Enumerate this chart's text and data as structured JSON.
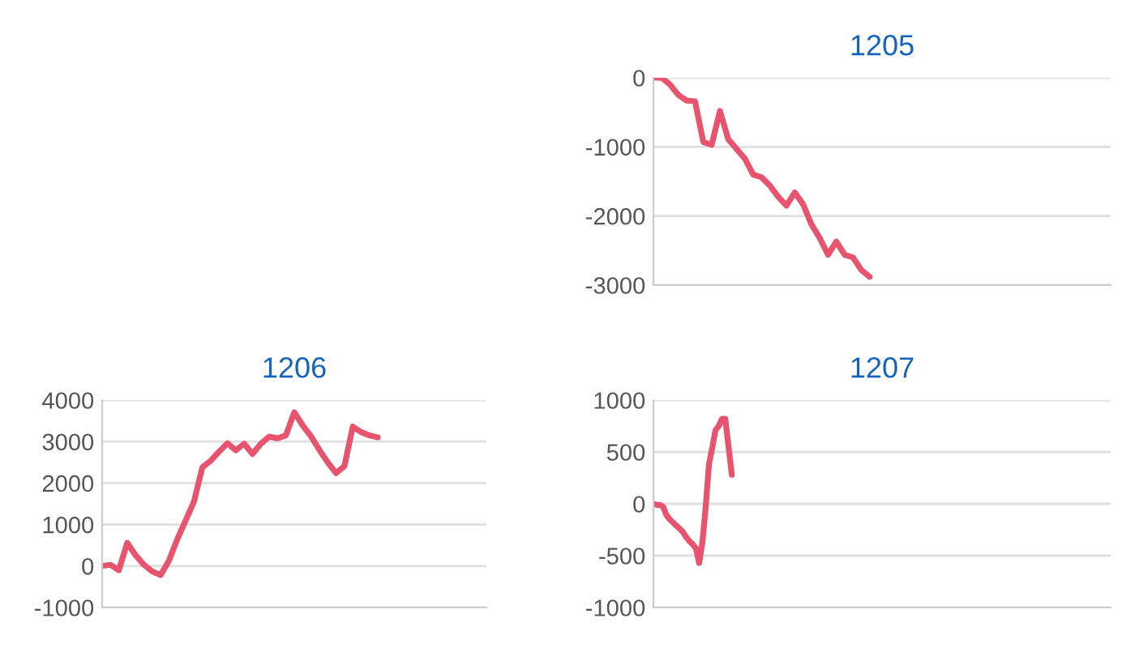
{
  "chart_data": [
    {
      "type": "line",
      "title": "1205",
      "categories": [
        null,
        null,
        null,
        null,
        null,
        null,
        null,
        null,
        null,
        null,
        null,
        null,
        null,
        null,
        null,
        null,
        null,
        null,
        null,
        null,
        null,
        null,
        null,
        null,
        null,
        null,
        null,
        null,
        null,
        null,
        null,
        null,
        null,
        null,
        null,
        null,
        null,
        null,
        null,
        null,
        null,
        null,
        null,
        null,
        null,
        null,
        null,
        null,
        null,
        null,
        null,
        null,
        null,
        null,
        null,
        null
      ],
      "series": [
        {
          "color": "#e8546e",
          "values": [
            0,
            0,
            -100,
            -250,
            -330,
            -340,
            -930,
            -970,
            -480,
            -890,
            -1030,
            -1170,
            -1400,
            -1440,
            -1560,
            -1720,
            -1850,
            -1660,
            -1830,
            -2120,
            -2320,
            -2560,
            -2370,
            -2560,
            -2600,
            -2780,
            -2880,
            null,
            null,
            null,
            null,
            null,
            null,
            null,
            null,
            null,
            null,
            null,
            null,
            null,
            null,
            null,
            null,
            null,
            null,
            null,
            null,
            null,
            null,
            null,
            null,
            null,
            null,
            null,
            null,
            null
          ]
        }
      ],
      "ylim": [
        -3000,
        0
      ],
      "yticks": [
        -3000,
        -2000,
        -1000,
        0
      ],
      "grid": "y",
      "tick_labels": "y",
      "marker": "none",
      "line_style": "solid"
    },
    {
      "type": "line",
      "title": "1206",
      "categories": [
        null,
        null,
        null,
        null,
        null,
        null,
        null,
        null,
        null,
        null,
        null,
        null,
        null,
        null,
        null,
        null,
        null,
        null,
        null,
        null,
        null,
        null,
        null,
        null,
        null,
        null,
        null,
        null,
        null,
        null,
        null,
        null,
        null,
        null,
        null,
        null,
        null,
        null,
        null,
        null,
        null,
        null,
        null,
        null,
        null,
        null,
        null
      ],
      "series": [
        {
          "color": "#e8546e",
          "values": [
            0,
            30,
            -100,
            560,
            260,
            30,
            -130,
            -220,
            130,
            650,
            1100,
            1560,
            2380,
            2540,
            2760,
            2960,
            2790,
            2950,
            2700,
            2950,
            3120,
            3080,
            3150,
            3710,
            3390,
            3130,
            2800,
            2500,
            2240,
            2410,
            3360,
            3230,
            3150,
            3100,
            null,
            null,
            null,
            null,
            null,
            null,
            null,
            null,
            null,
            null,
            null,
            null,
            null
          ]
        }
      ],
      "ylim": [
        -1000,
        4000
      ],
      "yticks": [
        -1000,
        0,
        1000,
        2000,
        3000,
        4000
      ],
      "grid": "y",
      "tick_labels": "y",
      "marker": "none",
      "line_style": "solid"
    },
    {
      "type": "line",
      "title": "1207",
      "categories": [
        null,
        null,
        null,
        null,
        null,
        null,
        null,
        null,
        null,
        null,
        null,
        null,
        null,
        null,
        null,
        null,
        null,
        null,
        null,
        null,
        null,
        null,
        null,
        null,
        null,
        null,
        null,
        null,
        null,
        null,
        null,
        null,
        null,
        null,
        null,
        null,
        null,
        null,
        null,
        null,
        null,
        null,
        null,
        null,
        null,
        null,
        null,
        null,
        null,
        null,
        null,
        null,
        null,
        null,
        null,
        null,
        null,
        null,
        null,
        null,
        null,
        null,
        null,
        null,
        null,
        null,
        null,
        null,
        null,
        null,
        null,
        null,
        null,
        null,
        null,
        null,
        null,
        null,
        null,
        null,
        null,
        null,
        null,
        null,
        null,
        null,
        null,
        null,
        null,
        null,
        null,
        null,
        null,
        null,
        null,
        null,
        null,
        null,
        null,
        null,
        null,
        null,
        null,
        null,
        null,
        null,
        null,
        null,
        null,
        null,
        null,
        null,
        null,
        null,
        null,
        null,
        null,
        null,
        null,
        null,
        null,
        null,
        null,
        null,
        null,
        null,
        null,
        null,
        null,
        null,
        null,
        null,
        null,
        null,
        null,
        null,
        null,
        null,
        null,
        null,
        null
      ],
      "series": [
        {
          "color": "#e8546e",
          "values": [
            0,
            -10,
            -10,
            -30,
            -110,
            -150,
            -180,
            -210,
            -240,
            -270,
            -320,
            -360,
            -390,
            -430,
            -570,
            -370,
            -30,
            380,
            540,
            710,
            750,
            820,
            820,
            550,
            280,
            null,
            null,
            null,
            null,
            null,
            null,
            null,
            null,
            null,
            null,
            null,
            null,
            null,
            null,
            null,
            null,
            null,
            null,
            null,
            null,
            null,
            null,
            null,
            null,
            null,
            null,
            null,
            null,
            null,
            null,
            null,
            null,
            null,
            null,
            null,
            null,
            null,
            null,
            null,
            null,
            null,
            null,
            null,
            null,
            null,
            null,
            null,
            null,
            null,
            null,
            null,
            null,
            null,
            null,
            null,
            null,
            null,
            null,
            null,
            null,
            null,
            null,
            null,
            null,
            null,
            null,
            null,
            null,
            null,
            null,
            null,
            null,
            null,
            null,
            null,
            null,
            null,
            null,
            null,
            null,
            null,
            null,
            null,
            null,
            null,
            null,
            null,
            null,
            null,
            null,
            null,
            null,
            null,
            null,
            null,
            null,
            null,
            null,
            null,
            null,
            null,
            null,
            null,
            null,
            null,
            null,
            null,
            null,
            null,
            null,
            null,
            null,
            null,
            null,
            null,
            null
          ]
        }
      ],
      "ylim": [
        -1000,
        1000
      ],
      "yticks": [
        -1000,
        -500,
        0,
        500,
        1000
      ],
      "grid": "y",
      "tick_labels": "y",
      "marker": "none",
      "line_style": "solid"
    }
  ]
}
